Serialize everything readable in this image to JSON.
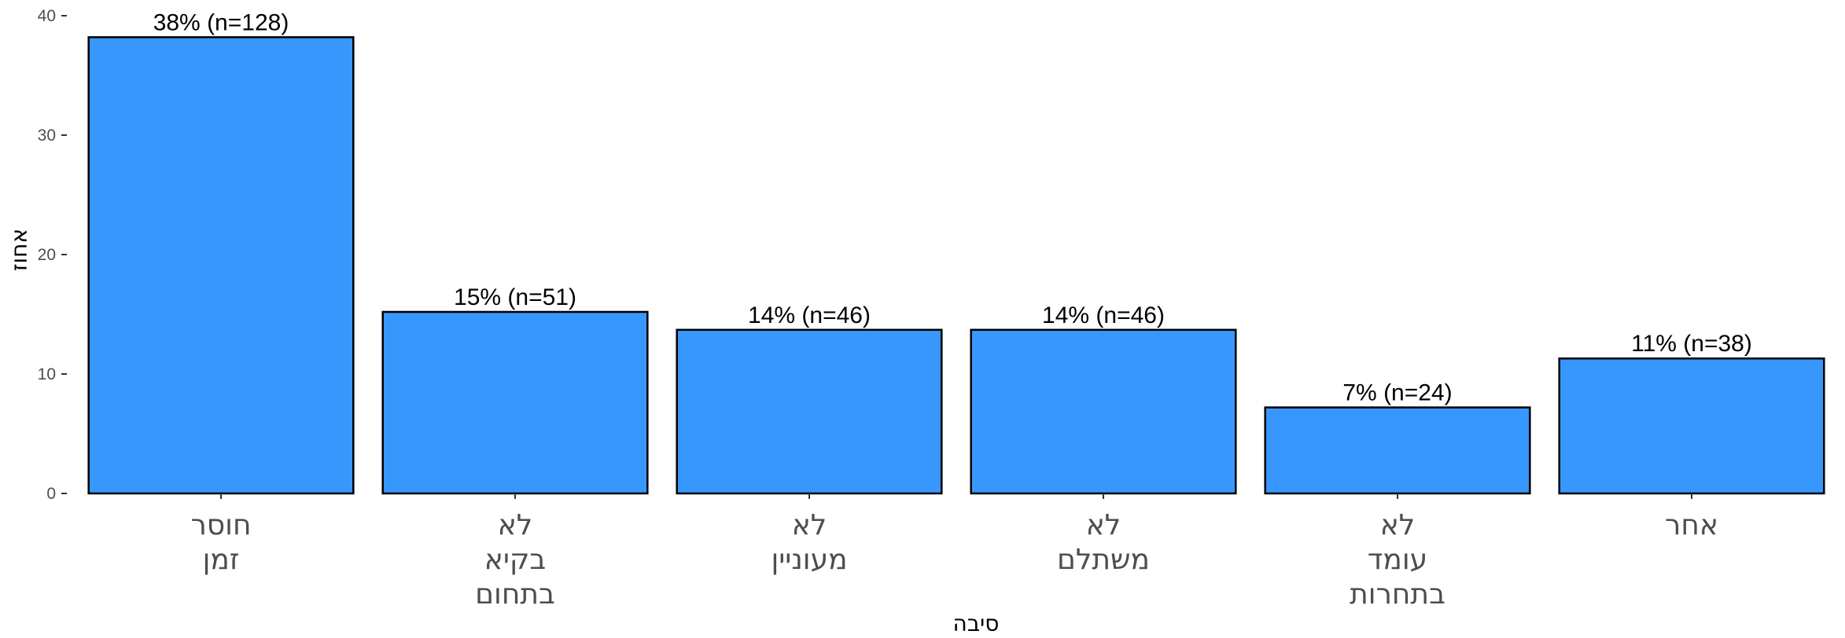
{
  "chart_data": {
    "type": "bar",
    "categories": [
      [
        "חוסר",
        "זמן"
      ],
      [
        "לא",
        "בקיא",
        "בתחום"
      ],
      [
        "לא",
        "מעוניין"
      ],
      [
        "לא",
        "משתלם"
      ],
      [
        "לא",
        "עומד",
        "בתחרות"
      ],
      [
        "אחר"
      ]
    ],
    "values": [
      38.2,
      15.2,
      13.7,
      13.7,
      7.2,
      11.3
    ],
    "data_labels": [
      "38% (n=128)",
      "15% (n=51)",
      "14% (n=46)",
      "14% (n=46)",
      "7% (n=24)",
      "11% (n=38)"
    ],
    "y_ticks": [
      0,
      10,
      20,
      30,
      40
    ],
    "ylim": [
      0,
      40
    ],
    "xlabel": "סיבה",
    "ylabel": "אחוז",
    "bar_color": "#3797fd",
    "bar_outline": "#000000",
    "grid": false,
    "legend": "none"
  }
}
